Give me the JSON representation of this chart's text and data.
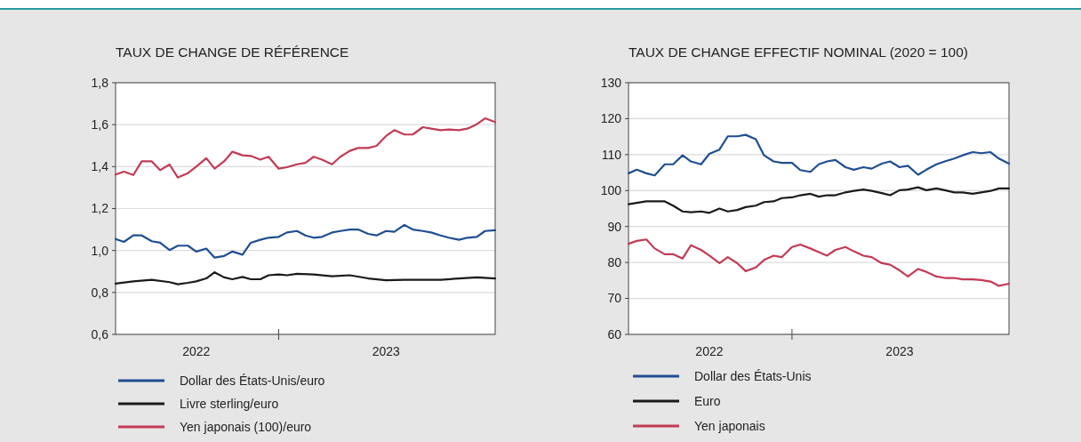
{
  "chart_data": [
    {
      "type": "line",
      "title": "TAUX DE CHANGE DE RÉFÉRENCE",
      "xlim": [
        "2022-04-01",
        "2024-01-01"
      ],
      "xticks": [
        {
          "value": "2022-08-15",
          "label": "2022"
        },
        {
          "value": "2023-01-01",
          "label": null
        },
        {
          "value": "2023-07-01",
          "label": "2023"
        }
      ],
      "ylim": [
        0.6,
        1.8
      ],
      "yticks": [
        {
          "value": 0.6,
          "label": "0,6"
        },
        {
          "value": 0.8,
          "label": "0,8"
        },
        {
          "value": 1.0,
          "label": "1,0"
        },
        {
          "value": 1.2,
          "label": "1,2"
        },
        {
          "value": 1.4,
          "label": "1,4"
        },
        {
          "value": 1.6,
          "label": "1,6"
        },
        {
          "value": 1.8,
          "label": "1,8"
        }
      ],
      "grid": "y",
      "legend": "bottom",
      "line_style": "solid",
      "x": [
        "2022-04-01",
        "2022-04-15",
        "2022-05-01",
        "2022-05-15",
        "2022-06-01",
        "2022-06-15",
        "2022-07-01",
        "2022-07-15",
        "2022-08-01",
        "2022-08-15",
        "2022-09-01",
        "2022-09-15",
        "2022-10-01",
        "2022-10-15",
        "2022-11-01",
        "2022-11-15",
        "2022-12-01",
        "2022-12-15",
        "2023-01-01",
        "2023-01-15",
        "2023-02-01",
        "2023-02-15",
        "2023-03-01",
        "2023-03-15",
        "2023-04-01",
        "2023-04-15",
        "2023-05-01",
        "2023-05-15",
        "2023-06-01",
        "2023-06-15",
        "2023-07-01",
        "2023-07-15",
        "2023-08-01",
        "2023-08-15",
        "2023-09-01",
        "2023-09-15",
        "2023-10-01",
        "2023-10-15",
        "2023-11-01",
        "2023-11-15",
        "2023-12-01",
        "2023-12-15",
        "2024-01-01"
      ],
      "series": [
        {
          "name": "Dollar des États-Unis/euro",
          "color": "#1f4e91",
          "values": [
            1.055,
            1.041,
            1.072,
            1.072,
            1.044,
            1.037,
            1.002,
            1.023,
            1.023,
            0.995,
            1.009,
            0.966,
            0.974,
            0.995,
            0.98,
            1.037,
            1.051,
            1.061,
            1.065,
            1.086,
            1.093,
            1.072,
            1.061,
            1.065,
            1.086,
            1.093,
            1.1,
            1.1,
            1.079,
            1.072,
            1.093,
            1.089,
            1.122,
            1.1,
            1.093,
            1.086,
            1.072,
            1.061,
            1.051,
            1.061,
            1.065,
            1.093,
            1.097
          ]
        },
        {
          "name": "Livre sterling/euro",
          "color": "#1a1a1a",
          "x": [
            "2022-04-01",
            "2022-05-01",
            "2022-06-01",
            "2022-07-01",
            "2022-07-15",
            "2022-08-01",
            "2022-08-15",
            "2022-09-01",
            "2022-09-15",
            "2022-10-01",
            "2022-10-15",
            "2022-11-01",
            "2022-11-15",
            "2022-12-01",
            "2022-12-15",
            "2023-01-01",
            "2023-01-15",
            "2023-02-01",
            "2023-03-01",
            "2023-04-01",
            "2023-05-01",
            "2023-06-01",
            "2023-07-01",
            "2023-08-01",
            "2023-09-01",
            "2023-10-01",
            "2023-11-01",
            "2023-12-01",
            "2024-01-01"
          ],
          "values": [
            0.842,
            0.853,
            0.86,
            0.849,
            0.839,
            0.846,
            0.853,
            0.867,
            0.896,
            0.872,
            0.863,
            0.874,
            0.863,
            0.863,
            0.882,
            0.886,
            0.882,
            0.889,
            0.886,
            0.877,
            0.882,
            0.867,
            0.858,
            0.86,
            0.86,
            0.86,
            0.867,
            0.872,
            0.867
          ]
        },
        {
          "name": "Yen japonais (100)/euro",
          "color": "#c23b54",
          "values": [
            1.362,
            1.376,
            1.36,
            1.425,
            1.425,
            1.383,
            1.41,
            1.348,
            1.369,
            1.4,
            1.44,
            1.39,
            1.425,
            1.471,
            1.454,
            1.451,
            1.433,
            1.447,
            1.39,
            1.397,
            1.411,
            1.418,
            1.447,
            1.433,
            1.411,
            1.447,
            1.475,
            1.489,
            1.489,
            1.499,
            1.546,
            1.574,
            1.553,
            1.553,
            1.588,
            1.581,
            1.574,
            1.577,
            1.574,
            1.581,
            1.602,
            1.63,
            1.612
          ]
        }
      ]
    },
    {
      "type": "line",
      "title": "TAUX DE CHANGE EFFECTIF NOMINAL (2020 = 100)",
      "xlim": [
        "2022-04-01",
        "2024-01-01"
      ],
      "xticks": [
        {
          "value": "2022-08-15",
          "label": "2022"
        },
        {
          "value": "2023-01-01",
          "label": null
        },
        {
          "value": "2023-07-01",
          "label": "2023"
        }
      ],
      "ylim": [
        60,
        130
      ],
      "yticks": [
        60,
        70,
        80,
        90,
        100,
        110,
        120,
        130
      ],
      "grid": "y",
      "legend": "bottom",
      "line_style": "solid",
      "x": [
        "2022-04-01",
        "2022-04-15",
        "2022-05-01",
        "2022-05-15",
        "2022-06-01",
        "2022-06-15",
        "2022-07-01",
        "2022-07-15",
        "2022-08-01",
        "2022-08-15",
        "2022-09-01",
        "2022-09-15",
        "2022-10-01",
        "2022-10-15",
        "2022-11-01",
        "2022-11-15",
        "2022-12-01",
        "2022-12-15",
        "2023-01-01",
        "2023-01-15",
        "2023-02-01",
        "2023-02-15",
        "2023-03-01",
        "2023-03-15",
        "2023-04-01",
        "2023-04-15",
        "2023-05-01",
        "2023-05-15",
        "2023-06-01",
        "2023-06-15",
        "2023-07-01",
        "2023-07-15",
        "2023-08-01",
        "2023-08-15",
        "2023-09-01",
        "2023-09-15",
        "2023-10-01",
        "2023-10-15",
        "2023-11-01",
        "2023-11-15",
        "2023-12-01",
        "2023-12-15",
        "2024-01-01"
      ],
      "series": [
        {
          "name": "Dollar des États-Unis",
          "color": "#1f4e91",
          "values": [
            104.8,
            105.8,
            104.8,
            104.2,
            107.3,
            107.3,
            109.8,
            108.1,
            107.3,
            110.2,
            111.4,
            115.1,
            115.1,
            115.5,
            114.3,
            109.8,
            108.1,
            107.7,
            107.7,
            105.7,
            105.2,
            107.3,
            108.1,
            108.5,
            106.5,
            105.8,
            106.5,
            106.1,
            107.5,
            108.1,
            106.5,
            106.9,
            104.4,
            105.8,
            107.3,
            108.1,
            108.9,
            109.8,
            110.7,
            110.4,
            110.7,
            108.9,
            107.5
          ]
        },
        {
          "name": "Euro",
          "color": "#1a1a1a",
          "x": [
            "2022-04-01",
            "2022-05-01",
            "2022-06-01",
            "2022-06-15",
            "2022-07-01",
            "2022-07-15",
            "2022-08-01",
            "2022-08-15",
            "2022-09-01",
            "2022-09-15",
            "2022-10-01",
            "2022-10-15",
            "2022-11-01",
            "2022-11-15",
            "2022-12-01",
            "2022-12-15",
            "2023-01-01",
            "2023-01-15",
            "2023-02-01",
            "2023-02-15",
            "2023-03-01",
            "2023-03-15",
            "2023-04-01",
            "2023-04-15",
            "2023-05-01",
            "2023-05-15",
            "2023-06-01",
            "2023-06-15",
            "2023-07-01",
            "2023-07-15",
            "2023-08-01",
            "2023-08-15",
            "2023-09-01",
            "2023-09-15",
            "2023-10-01",
            "2023-10-15",
            "2023-11-01",
            "2023-11-15",
            "2023-12-01",
            "2023-12-15",
            "2024-01-01"
          ],
          "values": [
            96.2,
            97.0,
            97.0,
            95.8,
            94.2,
            94.0,
            94.2,
            93.8,
            95.0,
            94.2,
            94.6,
            95.4,
            95.8,
            96.8,
            97.0,
            97.9,
            98.1,
            98.7,
            99.1,
            98.3,
            98.7,
            98.7,
            99.5,
            99.9,
            100.3,
            99.9,
            99.3,
            98.7,
            100.1,
            100.3,
            100.9,
            100.1,
            100.6,
            100.1,
            99.5,
            99.5,
            99.1,
            99.5,
            99.9,
            100.6,
            100.6
          ]
        },
        {
          "name": "Yen japonais",
          "color": "#c23b54",
          "values": [
            85.2,
            86.0,
            86.4,
            83.9,
            82.3,
            82.3,
            81.1,
            84.8,
            83.5,
            81.9,
            79.8,
            81.5,
            79.8,
            77.6,
            78.6,
            80.7,
            81.9,
            81.5,
            84.3,
            85.0,
            83.9,
            82.9,
            81.9,
            83.5,
            84.3,
            83.1,
            81.9,
            81.5,
            79.8,
            79.4,
            77.8,
            76.1,
            78.2,
            77.4,
            76.1,
            75.7,
            75.7,
            75.3,
            75.3,
            75.1,
            74.7,
            73.5,
            74.1
          ]
        }
      ]
    }
  ]
}
